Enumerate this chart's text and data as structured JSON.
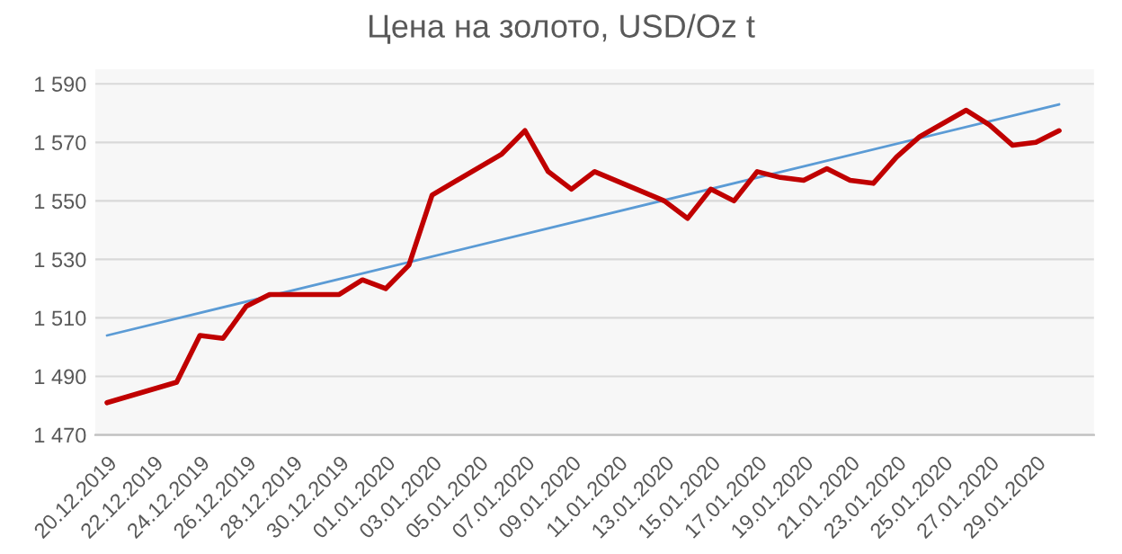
{
  "chart_data": {
    "type": "line",
    "title": "Цена на золото, USD/Oz t",
    "x": [
      "2019-12-20",
      "2019-12-23",
      "2019-12-24",
      "2019-12-25",
      "2019-12-26",
      "2019-12-27",
      "2019-12-30",
      "2019-12-31",
      "2020-01-01",
      "2020-01-02",
      "2020-01-03",
      "2020-01-06",
      "2020-01-07",
      "2020-01-08",
      "2020-01-09",
      "2020-01-10",
      "2020-01-13",
      "2020-01-14",
      "2020-01-15",
      "2020-01-16",
      "2020-01-17",
      "2020-01-18",
      "2020-01-19",
      "2020-01-20",
      "2020-01-21",
      "2020-01-22",
      "2020-01-23",
      "2020-01-24",
      "2020-01-26",
      "2020-01-27",
      "2020-01-28",
      "2020-01-29",
      "2020-01-30"
    ],
    "series": [
      {
        "color": "#c00000",
        "values": [
          1481,
          1488,
          1504,
          1503,
          1514,
          1518,
          1518,
          1523,
          1520,
          1528,
          1552,
          1566,
          1574,
          1560,
          1554,
          1560,
          1550,
          1544,
          1554,
          1550,
          1560,
          1558,
          1557,
          1561,
          1557,
          1556,
          1565,
          1572,
          1581,
          1576,
          1569,
          1570,
          1574
        ]
      },
      {
        "type": "line",
        "color": "#5b9bd5",
        "x": [
          "2019-12-20",
          "2020-01-30"
        ],
        "values": [
          1504,
          1583
        ]
      }
    ],
    "xlim": [
      "2019-12-19T12:00",
      "2020-01-31T12:00"
    ],
    "xticks": [
      {
        "value": "2019-12-20",
        "label": "20.12.2019"
      },
      {
        "value": "2019-12-22",
        "label": "22.12.2019"
      },
      {
        "value": "2019-12-24",
        "label": "24.12.2019"
      },
      {
        "value": "2019-12-26",
        "label": "26.12.2019"
      },
      {
        "value": "2019-12-28",
        "label": "28.12.2019"
      },
      {
        "value": "2019-12-30",
        "label": "30.12.2019"
      },
      {
        "value": "2020-01-01",
        "label": "01.01.2020"
      },
      {
        "value": "2020-01-03",
        "label": "03.01.2020"
      },
      {
        "value": "2020-01-05",
        "label": "05.01.2020"
      },
      {
        "value": "2020-01-07",
        "label": "07.01.2020"
      },
      {
        "value": "2020-01-09",
        "label": "09.01.2020"
      },
      {
        "value": "2020-01-11",
        "label": "11.01.2020"
      },
      {
        "value": "2020-01-13",
        "label": "13.01.2020"
      },
      {
        "value": "2020-01-15",
        "label": "15.01.2020"
      },
      {
        "value": "2020-01-17",
        "label": "17.01.2020"
      },
      {
        "value": "2020-01-19",
        "label": "19.01.2020"
      },
      {
        "value": "2020-01-21",
        "label": "21.01.2020"
      },
      {
        "value": "2020-01-23",
        "label": "23.01.2020"
      },
      {
        "value": "2020-01-25",
        "label": "25.01.2020"
      },
      {
        "value": "2020-01-27",
        "label": "27.01.2020"
      },
      {
        "value": "2020-01-29",
        "label": "29.01.2020"
      }
    ],
    "ylim": [
      1470,
      1595
    ],
    "yticks": [
      {
        "value": 1470,
        "label": "1 470"
      },
      {
        "value": 1490,
        "label": "1 490"
      },
      {
        "value": 1510,
        "label": "1 510"
      },
      {
        "value": 1530,
        "label": "1 530"
      },
      {
        "value": 1550,
        "label": "1 550"
      },
      {
        "value": 1570,
        "label": "1 570"
      },
      {
        "value": 1590,
        "label": "1 590"
      }
    ],
    "grid": "y",
    "legend": false,
    "marker": "none",
    "line_style": "solid"
  }
}
